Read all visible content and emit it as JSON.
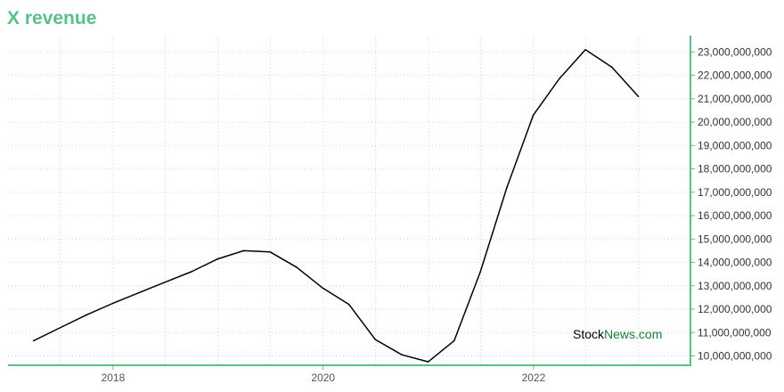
{
  "title": "X revenue",
  "watermark": {
    "part1": "Stock",
    "part2": "News.com",
    "color1": "#000000",
    "color2": "#1a7f37"
  },
  "colors": {
    "accent": "#5cbf8a",
    "line": "#000000",
    "grid": "#b7e3cb"
  },
  "chart_data": {
    "type": "line",
    "title": "X revenue",
    "xlabel": "",
    "ylabel": "",
    "grid": true,
    "y_axis_position": "right",
    "xlim": [
      "2017-01-01",
      "2023-06-30"
    ],
    "ylim": [
      9600000000,
      23700000000
    ],
    "x_ticks": [
      "2018",
      "2020",
      "2022"
    ],
    "y_ticks": [
      "10,000,000,000",
      "11,000,000,000",
      "12,000,000,000",
      "13,000,000,000",
      "14,000,000,000",
      "15,000,000,000",
      "16,000,000,000",
      "17,000,000,000",
      "18,000,000,000",
      "19,000,000,000",
      "20,000,000,000",
      "21,000,000,000",
      "22,000,000,000",
      "23,000,000,000"
    ],
    "y_tick_values": [
      10000000000,
      11000000000,
      12000000000,
      13000000000,
      14000000000,
      15000000000,
      16000000000,
      17000000000,
      18000000000,
      19000000000,
      20000000000,
      21000000000,
      22000000000,
      23000000000
    ],
    "series": [
      {
        "x": [
          "2017-03-31",
          "2017-06-30",
          "2017-09-30",
          "2017-12-31",
          "2018-03-31",
          "2018-06-30",
          "2018-09-30",
          "2018-12-31",
          "2019-03-31",
          "2019-06-30",
          "2019-09-30",
          "2019-12-31",
          "2020-03-31",
          "2020-06-30",
          "2020-09-30",
          "2020-12-31",
          "2021-03-31",
          "2021-06-30",
          "2021-09-30",
          "2021-12-31",
          "2022-03-31",
          "2022-06-30",
          "2022-09-30",
          "2022-12-31"
        ],
        "values": [
          10650000000,
          11200000000,
          11750000000,
          12250000000,
          12700000000,
          13150000000,
          13600000000,
          14150000000,
          14500000000,
          14450000000,
          13800000000,
          12900000000,
          12200000000,
          10700000000,
          10050000000,
          9750000000,
          10650000000,
          13600000000,
          17200000000,
          20300000000,
          21850000000,
          23100000000,
          22350000000,
          21100000000
        ]
      }
    ]
  }
}
